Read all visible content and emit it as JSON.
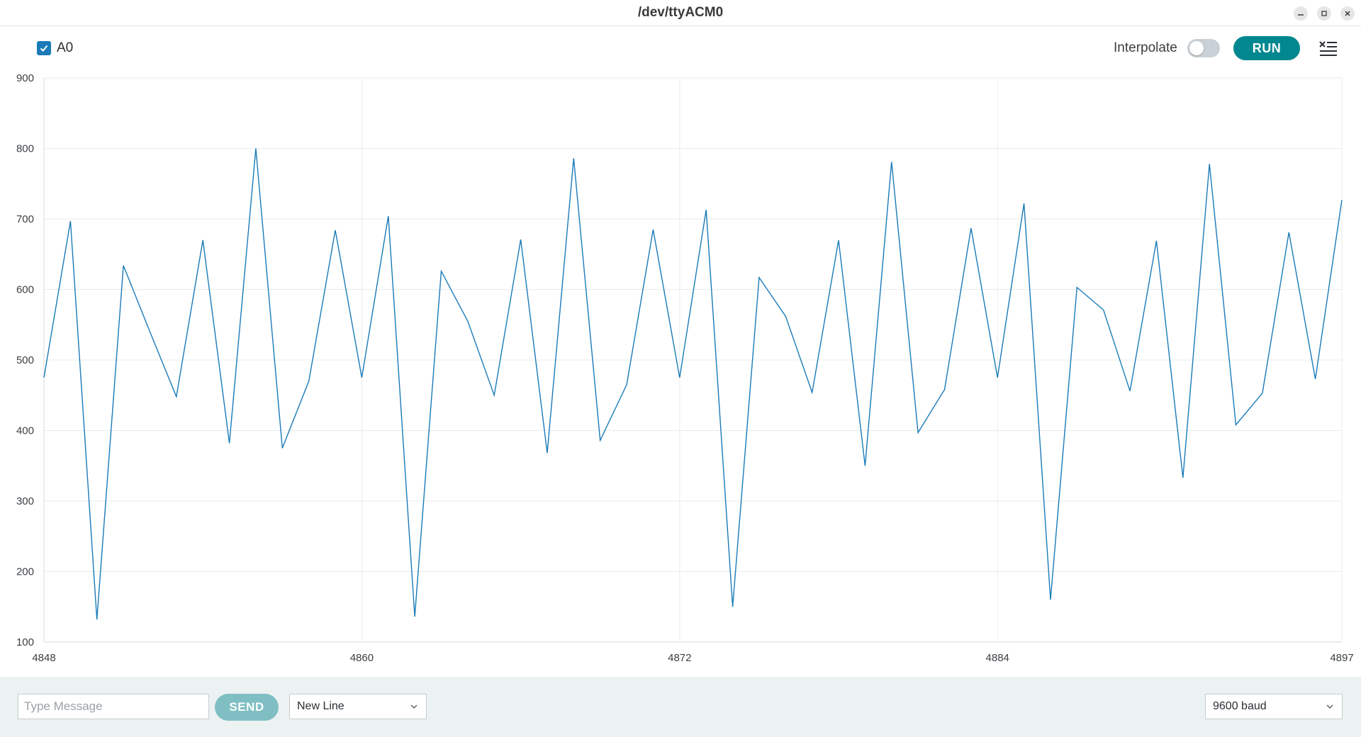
{
  "window": {
    "title": "/dev/ttyACM0",
    "controls": [
      "minimize-icon",
      "maximize-icon",
      "close-icon"
    ]
  },
  "toolbar": {
    "series_label": "A0",
    "series_checked": true,
    "interpolate_label": "Interpolate",
    "interpolate_on": false,
    "run_label": "RUN",
    "clear_icon": "clear-list-icon"
  },
  "bottom": {
    "message_placeholder": "Type Message",
    "send_label": "SEND",
    "line_ending": "New Line",
    "baud_rate": "9600 baud"
  },
  "colors": {
    "line": "#1a7bb8",
    "run_button": "#00878f",
    "send_button": "#7fbfc3",
    "bottom_bar": "#ecf1f1",
    "grid": "#e8ecee"
  },
  "chart_data": {
    "type": "line",
    "title": "",
    "xlabel": "",
    "ylabel": "",
    "xlim": [
      4848,
      4897
    ],
    "ylim": [
      100,
      900
    ],
    "x_ticks": [
      4848,
      4860,
      4872,
      4884,
      4897
    ],
    "y_ticks": [
      100,
      200,
      300,
      400,
      500,
      600,
      700,
      800,
      900
    ],
    "grid": true,
    "legend": "top-left",
    "series": [
      {
        "name": "A0",
        "x": [
          4848,
          4849,
          4850,
          4851,
          4852,
          4853,
          4854,
          4855,
          4856,
          4857,
          4858,
          4859,
          4860,
          4861,
          4862,
          4863,
          4864,
          4865,
          4866,
          4867,
          4868,
          4869,
          4870,
          4871,
          4872,
          4873,
          4874,
          4875,
          4876,
          4877,
          4878,
          4879,
          4880,
          4881,
          4882,
          4883,
          4884,
          4885,
          4886,
          4887,
          4888,
          4889,
          4890,
          4891,
          4892,
          4893,
          4894,
          4895,
          4896,
          4897
        ],
        "values": [
          475,
          697,
          132,
          634,
          540,
          448,
          670,
          382,
          800,
          375,
          470,
          684,
          475,
          704,
          136,
          626,
          555,
          450,
          671,
          368,
          786,
          386,
          465,
          685,
          475,
          713,
          150,
          617,
          562,
          454,
          670,
          350,
          781,
          397,
          458,
          687,
          475,
          722,
          160,
          603,
          571,
          456,
          669,
          333,
          778,
          408,
          453,
          681,
          473,
          727
        ]
      }
    ]
  }
}
